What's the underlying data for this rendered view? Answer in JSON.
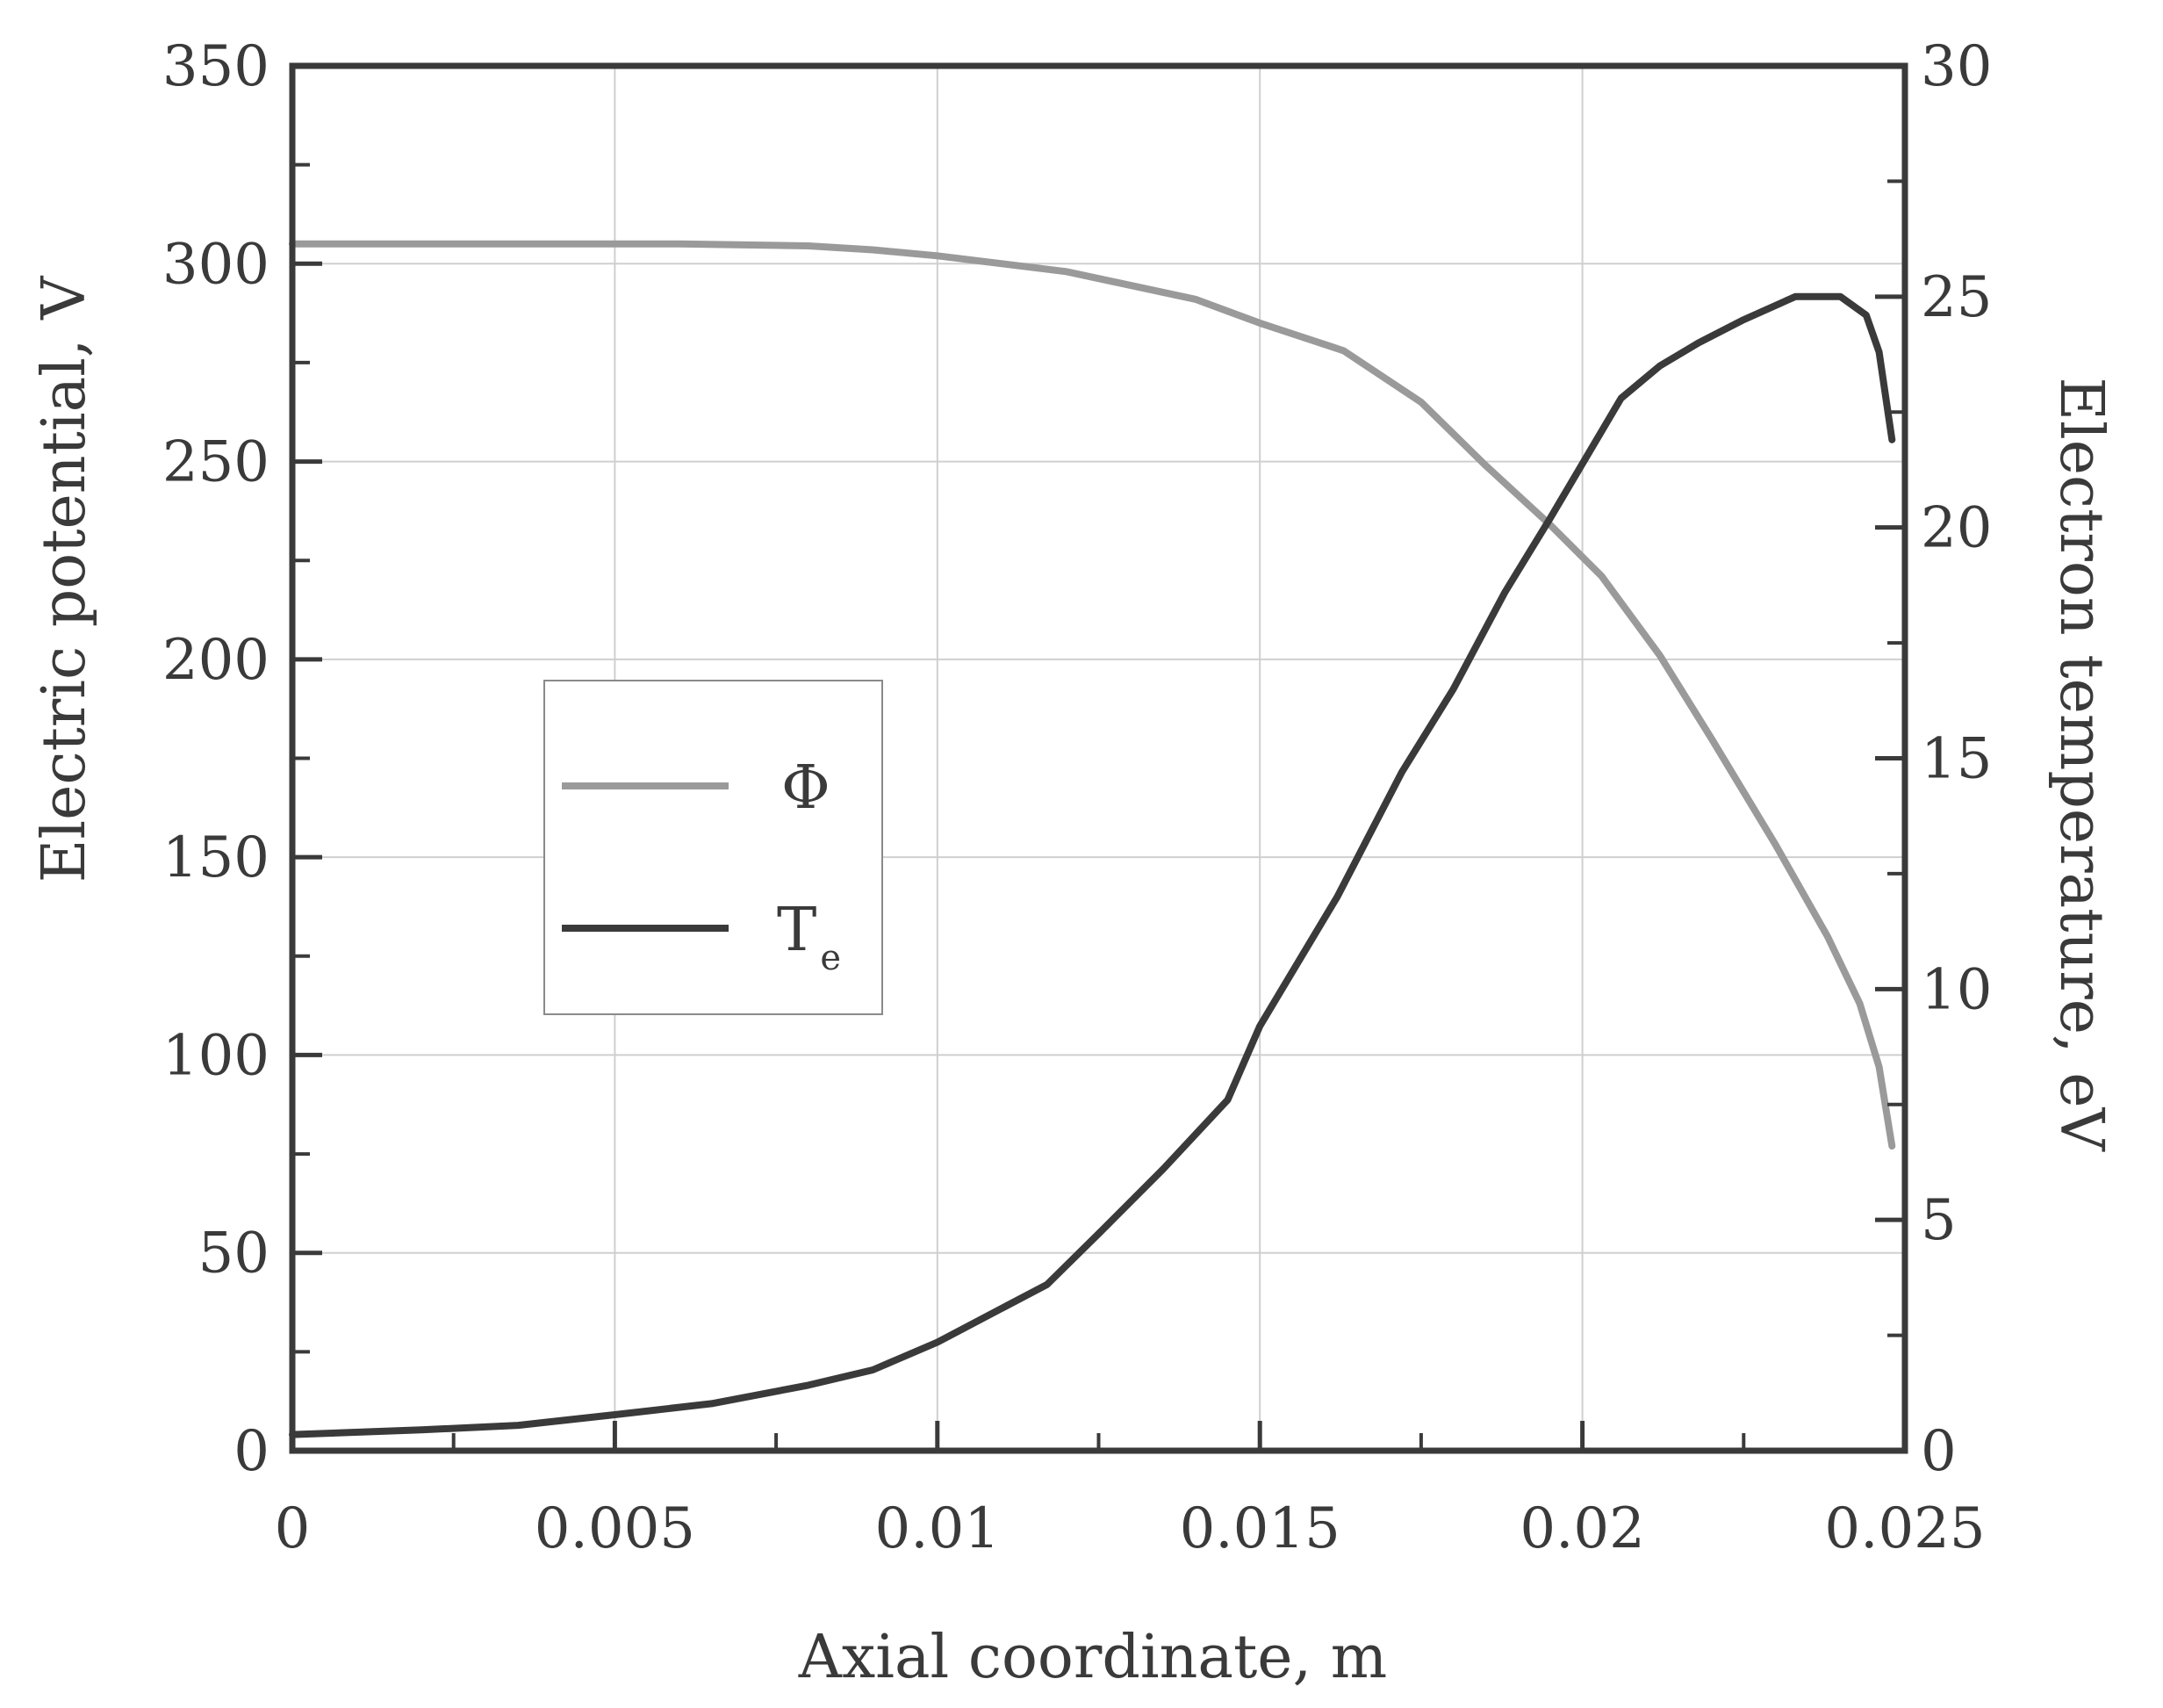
{
  "chart_data": {
    "type": "line",
    "xlabel": "Axial coordinate, m",
    "ylabel_left": "Electric potential, V",
    "ylabel_right": "Electron temperature, eV",
    "xlim": [
      0,
      0.025
    ],
    "ylim_left": [
      0,
      350
    ],
    "ylim_right": [
      0,
      30
    ],
    "x_ticks": [
      "0",
      "0.005",
      "0.01",
      "0.015",
      "0.02",
      "0.025"
    ],
    "y_left_ticks": [
      "0",
      "50",
      "100",
      "150",
      "200",
      "250",
      "300",
      "350"
    ],
    "y_right_ticks": [
      "0",
      "5",
      "10",
      "15",
      "20",
      "25",
      "30"
    ],
    "grid": true,
    "legend_position": "center-left",
    "series": [
      {
        "name": "Φ",
        "axis": "left",
        "color": "#9a9a9a",
        "x": [
          0,
          0.002,
          0.004,
          0.006,
          0.008,
          0.009,
          0.01,
          0.012,
          0.014,
          0.015,
          0.0163,
          0.0175,
          0.0185,
          0.0195,
          0.0203,
          0.0212,
          0.022,
          0.023,
          0.0238,
          0.0243,
          0.0246,
          0.0248
        ],
        "y": [
          305,
          305,
          305,
          305,
          304.5,
          303.5,
          302,
          298,
          291,
          285,
          278,
          265,
          249,
          234,
          221,
          201,
          180,
          153,
          130,
          113,
          97,
          77
        ]
      },
      {
        "name": "T",
        "sub": "e",
        "axis": "right",
        "color": "#3a3a3a",
        "x": [
          0,
          0.002,
          0.0035,
          0.005,
          0.0065,
          0.008,
          0.009,
          0.01,
          0.0117,
          0.0125,
          0.0135,
          0.0145,
          0.015,
          0.0162,
          0.0172,
          0.018,
          0.0188,
          0.0195,
          0.0206,
          0.0212,
          0.0218,
          0.0225,
          0.0233,
          0.024,
          0.0244,
          0.0246,
          0.0248
        ],
        "y": [
          0.35,
          0.45,
          0.55,
          0.78,
          1.02,
          1.42,
          1.75,
          2.35,
          3.6,
          4.7,
          6.1,
          7.6,
          9.2,
          12,
          14.7,
          16.5,
          18.6,
          20.2,
          22.8,
          23.5,
          24,
          24.5,
          25,
          25,
          24.6,
          23.8,
          21.9
        ]
      }
    ]
  }
}
